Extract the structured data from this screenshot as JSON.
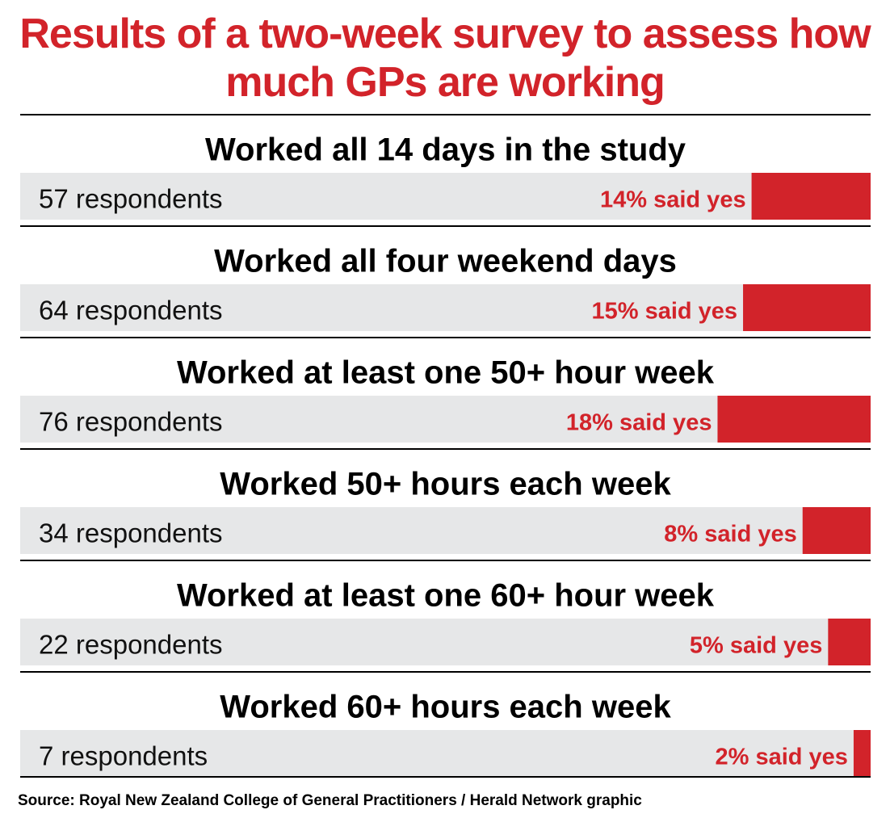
{
  "chart_data": {
    "type": "bar",
    "orientation": "horizontal",
    "title": "Results of a two-week survey to assess how much GPs are working",
    "categories": [
      "Worked all 14 days in the study",
      "Worked all four weekend days",
      "Worked at least one 50+ hour week",
      "Worked 50+ hours each week",
      "Worked at least one 60+ hour week",
      "Worked 60+ hours each week"
    ],
    "respondent_labels": [
      "57 respondents",
      "64 respondents",
      "76 respondents",
      "34 respondents",
      "22 respondents",
      "7 respondents"
    ],
    "values": [
      14,
      15,
      18,
      8,
      5,
      2
    ],
    "value_labels": [
      "14% said yes",
      "15% said yes",
      "18% said yes",
      "8% said yes",
      "5% said yes",
      "2% said yes"
    ],
    "xlim": [
      0,
      100
    ],
    "color": "#d2232a",
    "track_color": "#e6e7e8",
    "source": "Source: Royal New Zealand College of General Practitioners / Herald Network graphic"
  }
}
